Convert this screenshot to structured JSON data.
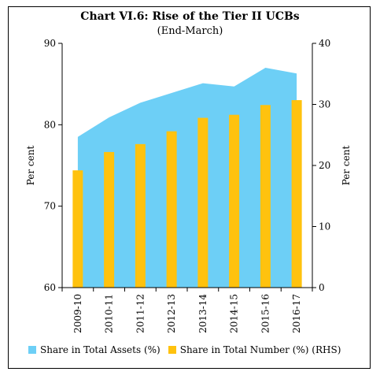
{
  "chart_data": {
    "type": "area+bar",
    "title": "Chart VI.6: Rise of the Tier II UCBs",
    "subtitle": "(End-March)",
    "categories": [
      "2009-10",
      "2010-11",
      "2011-12",
      "2012-13",
      "2013-14",
      "2014-15",
      "2015-16",
      "2016-17"
    ],
    "series": [
      {
        "name": "Share in Total Assets (%)",
        "type": "area",
        "axis": "left",
        "color": "#6dcff6",
        "values": [
          78.5,
          80.9,
          82.7,
          83.9,
          85.1,
          84.7,
          87.0,
          86.3
        ]
      },
      {
        "name": "Share in Total Number (%) (RHS)",
        "type": "bar",
        "axis": "right",
        "color": "#ffc20e",
        "values": [
          19.2,
          22.2,
          23.5,
          25.6,
          27.8,
          28.3,
          29.9,
          30.7
        ]
      }
    ],
    "ylabel": "Per cent",
    "y2label": "Per cent",
    "ylim": [
      60,
      90
    ],
    "yticks": [
      60,
      70,
      80,
      90
    ],
    "y2lim": [
      0,
      40
    ],
    "y2ticks": [
      0,
      10,
      20,
      30,
      40
    ],
    "legend_position": "bottom",
    "grid": false
  }
}
